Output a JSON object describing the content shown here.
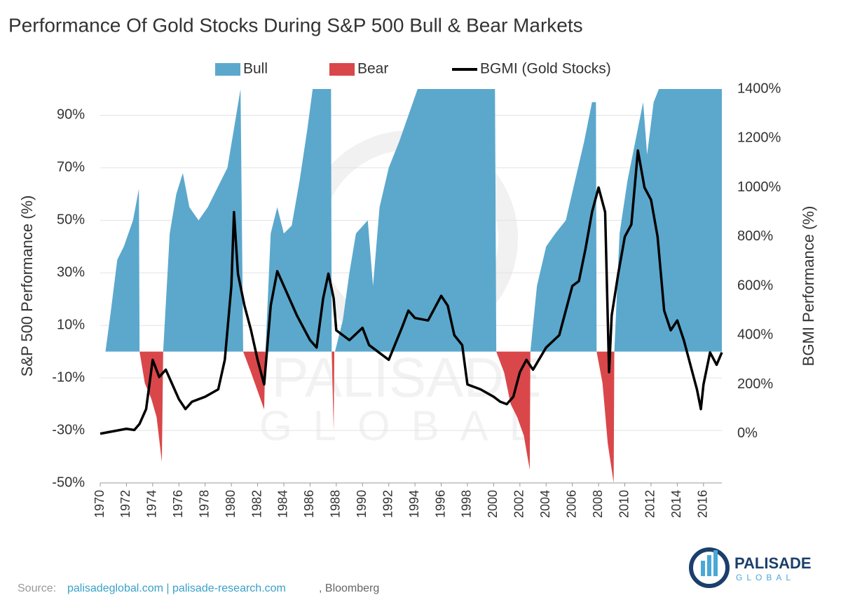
{
  "chart_data": {
    "type": "area-line",
    "title": "Performance Of Gold Stocks During S&P 500 Bull & Bear Markets",
    "y_label": "S&P 500 Performance (%)",
    "y2_label": "BGMI Performance (%)",
    "xlim": [
      1970,
      2017.4
    ],
    "xticks": [
      1970,
      1972,
      1974,
      1976,
      1978,
      1980,
      1982,
      1984,
      1986,
      1988,
      1990,
      1992,
      1994,
      1996,
      1998,
      2000,
      2002,
      2004,
      2006,
      2008,
      2010,
      2012,
      2014,
      2016
    ],
    "ylim": [
      -50,
      100
    ],
    "yticks": [
      {
        "value": -50,
        "label": "-50%"
      },
      {
        "value": -30,
        "label": "-30%"
      },
      {
        "value": -10,
        "label": "-10%"
      },
      {
        "value": 10,
        "label": "10%"
      },
      {
        "value": 30,
        "label": "30%"
      },
      {
        "value": 50,
        "label": "50%"
      },
      {
        "value": 70,
        "label": "70%"
      },
      {
        "value": 90,
        "label": "90%"
      }
    ],
    "y2lim": [
      -200,
      1400
    ],
    "y2ticks": [
      {
        "value": 0,
        "label": "0%"
      },
      {
        "value": 200,
        "label": "200%"
      },
      {
        "value": 400,
        "label": "400%"
      },
      {
        "value": 600,
        "label": "600%"
      },
      {
        "value": 800,
        "label": "800%"
      },
      {
        "value": 1000,
        "label": "1000%"
      },
      {
        "value": 1200,
        "label": "1200%"
      },
      {
        "value": 1400,
        "label": "1400%"
      }
    ],
    "grid": true,
    "legend": "top",
    "series": [
      {
        "name": "Bull",
        "color": "#5ba8cc",
        "kind": "area",
        "axis": "y",
        "x": [
          1970.4,
          1970.8,
          1971.3,
          1971.8,
          1972.5,
          1972.95,
          1973.0,
          1974.0,
          1974.8,
          1975.3,
          1975.8,
          1976.3,
          1976.8,
          1977.5,
          1978.2,
          1978.9,
          1979.7,
          1980.2,
          1980.7,
          1980.9,
          1981.5,
          1982.6,
          1983.0,
          1983.5,
          1984.0,
          1984.6,
          1985.2,
          1985.8,
          1986.2,
          1987.6,
          1987.65,
          1987.7,
          1987.9,
          1988.5,
          1989.0,
          1989.5,
          1990.4,
          1990.8,
          1991.3,
          1992.0,
          1992.8,
          1993.5,
          1994.2,
          2000.1,
          2000.2,
          2001.0,
          2002.8,
          2003.3,
          2004.0,
          2004.7,
          2005.5,
          2006.2,
          2006.9,
          2007.5,
          2007.8,
          2007.85,
          2008.0,
          2009.2,
          2009.6,
          2010.2,
          2010.8,
          2011.4,
          2011.7,
          2012.2,
          2012.6,
          2017.4
        ],
        "values": [
          0,
          15,
          35,
          40,
          50,
          62,
          0,
          null,
          0,
          45,
          60,
          68,
          55,
          50,
          55,
          62,
          70,
          85,
          100,
          0,
          null,
          0,
          45,
          55,
          45,
          48,
          65,
          85,
          100,
          100,
          0,
          null,
          0,
          12,
          30,
          45,
          50,
          25,
          55,
          70,
          80,
          90,
          100,
          100,
          0,
          null,
          0,
          25,
          40,
          45,
          50,
          65,
          80,
          95,
          95,
          0,
          null,
          0,
          45,
          65,
          80,
          95,
          75,
          95,
          100,
          100
        ]
      },
      {
        "name": "Bear",
        "color": "#d9474a",
        "kind": "area",
        "axis": "y",
        "x": [
          1973.0,
          1973.4,
          1973.9,
          1974.3,
          1974.7,
          1974.8,
          1975.0,
          1980.9,
          1981.5,
          1982.0,
          1982.5,
          1982.6,
          1983.0,
          1987.65,
          1987.8,
          1987.85,
          1988.0,
          2000.2,
          2000.8,
          2001.3,
          2001.8,
          2002.3,
          2002.75,
          2002.8,
          2003.0,
          2007.85,
          2008.3,
          2008.7,
          2009.0,
          2009.15,
          2009.2
        ],
        "values": [
          0,
          -12,
          -18,
          -25,
          -42,
          0,
          null,
          0,
          -8,
          -15,
          -22,
          0,
          null,
          0,
          -30,
          0,
          null,
          0,
          -8,
          -20,
          -25,
          -32,
          -45,
          0,
          null,
          0,
          -12,
          -35,
          -45,
          -50,
          0
        ]
      },
      {
        "name": "BGMI (Gold Stocks)",
        "color": "#000000",
        "kind": "line",
        "axis": "y2",
        "x": [
          1970.0,
          1971.0,
          1972.0,
          1972.6,
          1973.0,
          1973.5,
          1974.0,
          1974.5,
          1975.0,
          1975.5,
          1976.0,
          1976.5,
          1977.0,
          1978.0,
          1979.0,
          1979.5,
          1980.0,
          1980.2,
          1980.5,
          1981.0,
          1981.5,
          1982.0,
          1982.5,
          1983.0,
          1983.5,
          1984.0,
          1985.0,
          1986.0,
          1986.5,
          1987.0,
          1987.4,
          1987.8,
          1988.0,
          1989.0,
          1990.0,
          1990.5,
          1991.0,
          1992.0,
          1993.0,
          1993.5,
          1994.0,
          1995.0,
          1996.0,
          1996.5,
          1997.0,
          1997.6,
          1998.0,
          1999.0,
          2000.0,
          2000.5,
          2001.0,
          2001.5,
          2002.0,
          2002.5,
          2003.0,
          2004.0,
          2005.0,
          2006.0,
          2006.5,
          2007.0,
          2007.5,
          2008.0,
          2008.5,
          2008.8,
          2009.0,
          2009.5,
          2010.0,
          2010.5,
          2011.0,
          2011.5,
          2012.0,
          2012.5,
          2013.0,
          2013.5,
          2014.0,
          2014.5,
          2015.0,
          2015.5,
          2015.8,
          2016.0,
          2016.5,
          2017.0,
          2017.4
        ],
        "values": [
          0,
          10,
          20,
          15,
          40,
          100,
          300,
          230,
          260,
          200,
          140,
          100,
          130,
          150,
          180,
          300,
          600,
          900,
          650,
          520,
          420,
          300,
          200,
          520,
          660,
          600,
          480,
          380,
          350,
          550,
          650,
          550,
          420,
          380,
          430,
          360,
          340,
          300,
          430,
          500,
          470,
          460,
          560,
          520,
          400,
          360,
          200,
          180,
          150,
          130,
          120,
          150,
          250,
          300,
          260,
          350,
          400,
          600,
          620,
          750,
          900,
          1000,
          900,
          250,
          480,
          650,
          800,
          850,
          1150,
          1000,
          950,
          800,
          500,
          420,
          460,
          380,
          280,
          180,
          100,
          200,
          330,
          280,
          330
        ]
      }
    ],
    "watermark": [
      "PALISADE",
      "GLOBAL"
    ],
    "source": {
      "prefix": "Source:",
      "links": "palisadeglobal.com | palisade-research.com",
      "suffix": ", Bloomberg"
    },
    "logo": {
      "name": "PALISADE",
      "sub": "GLOBAL"
    }
  }
}
